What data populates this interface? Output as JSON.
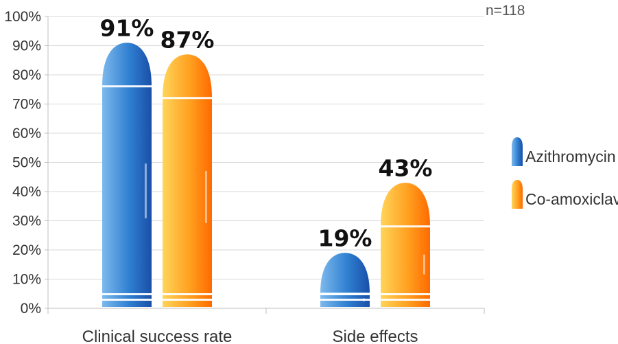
{
  "chart_data": {
    "type": "bar",
    "categories": [
      "Clinical success rate",
      "Side effects"
    ],
    "series": [
      {
        "name": "Azithromycin",
        "values": [
          91,
          19
        ]
      },
      {
        "name": "Co-amoxiclav",
        "values": [
          87,
          43
        ]
      }
    ],
    "data_labels": [
      [
        "91%",
        "19%"
      ],
      [
        "87%",
        "43%"
      ]
    ],
    "y_ticks": [
      "0%",
      "10%",
      "20%",
      "30%",
      "40%",
      "50%",
      "60%",
      "70%",
      "80%",
      "90%",
      "100%"
    ],
    "ylim": [
      0,
      100
    ],
    "grid": true,
    "legend_position": "right",
    "annotation": "n=118",
    "colors": {
      "azithromycin_light": "#7db9ec",
      "azithromycin_mid": "#2f7fd1",
      "azithromycin_dark": "#1a4fa8",
      "coamoxiclav_light": "#ffd45a",
      "coamoxiclav_mid": "#ffa020",
      "coamoxiclav_dark": "#ff6a00",
      "grid": "#d9d9d9",
      "axis": "#bfbfbf"
    }
  }
}
